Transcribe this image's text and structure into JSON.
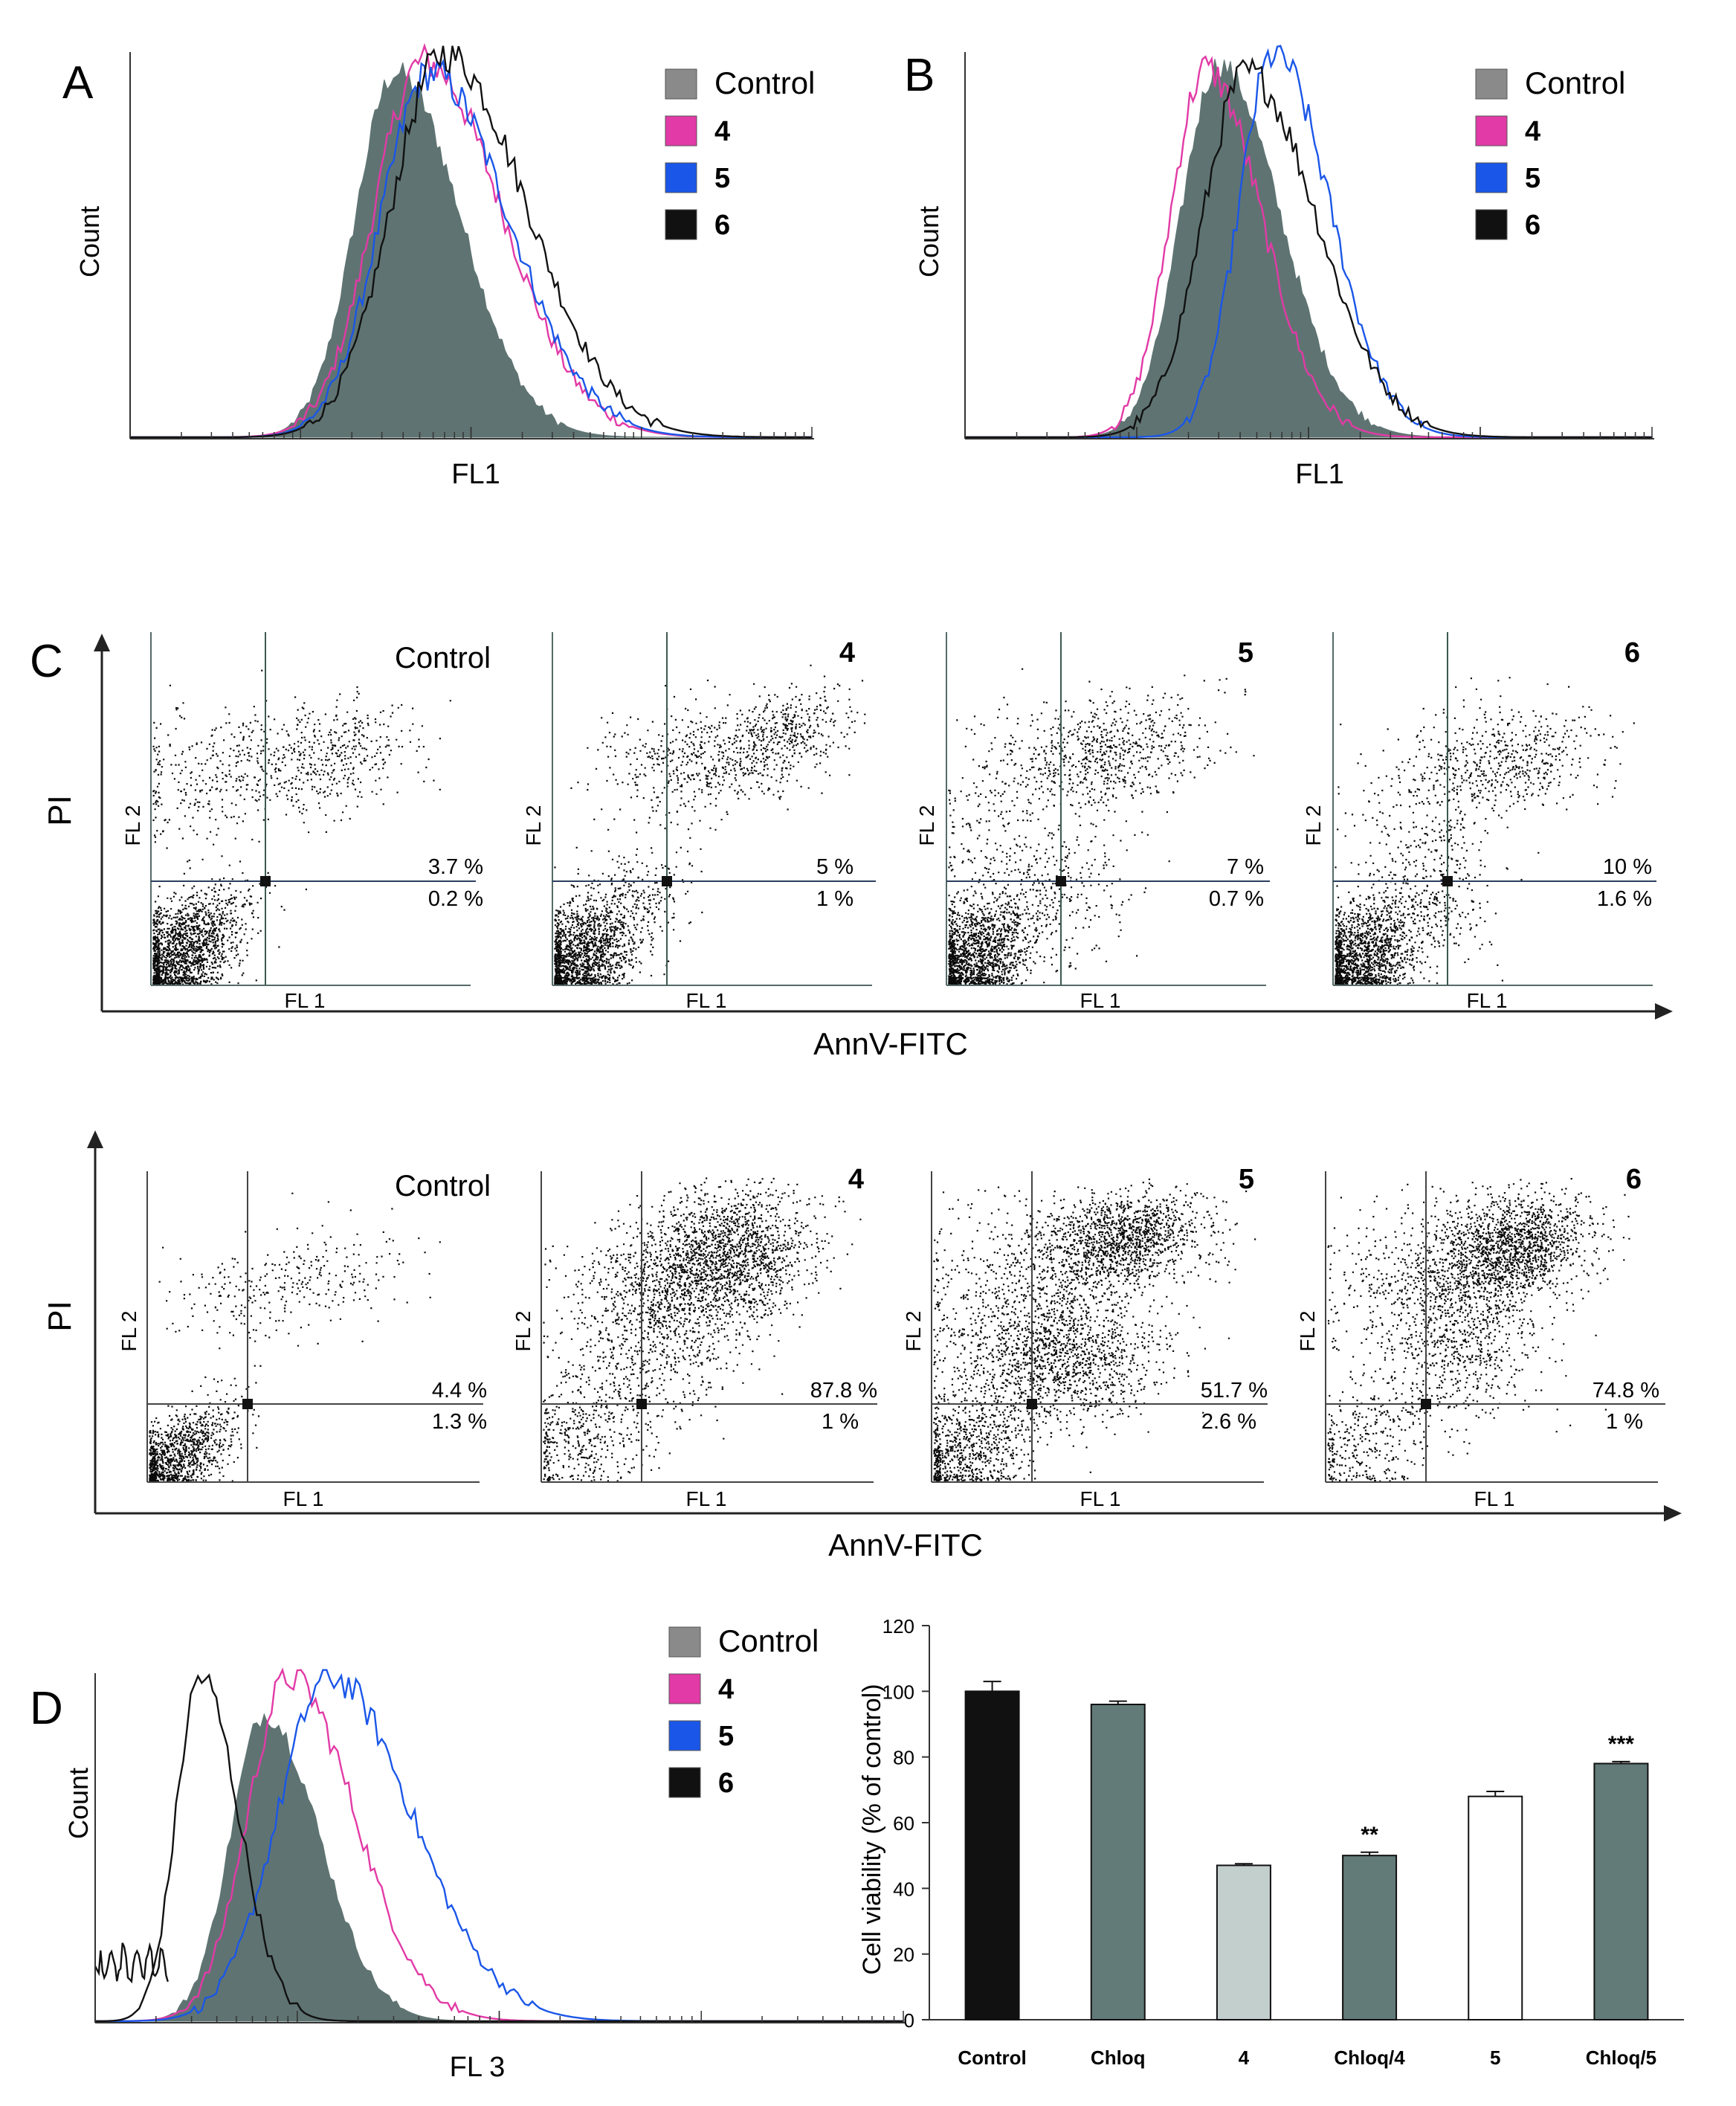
{
  "colors": {
    "control_fill": "#5f7472",
    "control_light": "#8a8a8a",
    "s4": "#e23aa6",
    "s5": "#1a56e8",
    "s6": "#111111",
    "axis": "#333333",
    "quad_line": "#2c3e50",
    "bar_black": "#111111",
    "bar_dark": "#627a78",
    "bar_light": "#c2cfcd",
    "bar_white": "#ffffff"
  },
  "panels": {
    "A": {
      "letter": "A",
      "xlabel": "FL1",
      "ylabel": "Count"
    },
    "B": {
      "letter": "B",
      "xlabel": "FL1",
      "ylabel": "Count"
    },
    "C": {
      "letter": "C",
      "ylabel": "PI",
      "xlabel": "AnnV-FITC",
      "sub_xlabel": "FL 1",
      "sub_ylabel": "FL 2"
    },
    "D": {
      "letter": "D",
      "xlabel": "FL 3",
      "ylabel": "Count"
    }
  },
  "legend": {
    "items": [
      "Control",
      "4",
      "5",
      "6"
    ]
  },
  "scatter_rows": [
    {
      "ylabel": "PI",
      "xlabel": "AnnV-FITC",
      "plots": [
        {
          "title": "Control",
          "upper": "3.7 %",
          "lower": "0.2 %"
        },
        {
          "title": "4",
          "upper": "5 %",
          "lower": "1 %"
        },
        {
          "title": "5",
          "upper": "7 %",
          "lower": "0.7 %"
        },
        {
          "title": "6",
          "upper": "10 %",
          "lower": "1.6 %"
        }
      ]
    },
    {
      "ylabel": "PI",
      "xlabel": "AnnV-FITC",
      "plots": [
        {
          "title": "Control",
          "upper": "4.4 %",
          "lower": "1.3 %"
        },
        {
          "title": "4",
          "upper": "87.8 %",
          "lower": "1 %"
        },
        {
          "title": "5",
          "upper": "51.7 %",
          "lower": "2.6 %"
        },
        {
          "title": "6",
          "upper": "74.8 %",
          "lower": "1 %"
        }
      ]
    }
  ],
  "chart_data": [
    {
      "panel": "A",
      "type": "area",
      "title": "",
      "xlabel": "FL1",
      "ylabel": "Count",
      "x_scale": "log",
      "legend": [
        "Control",
        "4",
        "5",
        "6"
      ],
      "series": [
        {
          "name": "Control",
          "style": "filled",
          "peak": 0.39,
          "height": 0.95
        },
        {
          "name": "4",
          "style": "line",
          "peak": 0.43,
          "height": 0.98
        },
        {
          "name": "5",
          "style": "line",
          "peak": 0.44,
          "height": 0.95
        },
        {
          "name": "6",
          "style": "line",
          "peak": 0.46,
          "height": 1.0
        }
      ]
    },
    {
      "panel": "B",
      "type": "area",
      "title": "",
      "xlabel": "FL1",
      "ylabel": "Count",
      "x_scale": "log",
      "legend": [
        "Control",
        "4",
        "5",
        "6"
      ],
      "series": [
        {
          "name": "Control",
          "style": "filled",
          "peak": 0.37,
          "height": 0.97
        },
        {
          "name": "4",
          "style": "line",
          "peak": 0.35,
          "height": 0.96
        },
        {
          "name": "5",
          "style": "line",
          "peak": 0.45,
          "height": 1.0
        },
        {
          "name": "6",
          "style": "line",
          "peak": 0.41,
          "height": 0.95
        }
      ]
    },
    {
      "panel": "D",
      "type": "area",
      "title": "",
      "xlabel": "FL 3",
      "ylabel": "Count",
      "x_scale": "log",
      "legend": [
        "Control",
        "4",
        "5",
        "6"
      ],
      "series": [
        {
          "name": "Control",
          "style": "filled",
          "peak": 0.21,
          "height": 0.89
        },
        {
          "name": "4",
          "style": "line",
          "peak": 0.24,
          "height": 1.0
        },
        {
          "name": "5",
          "style": "line",
          "peak": 0.29,
          "height": 1.0
        },
        {
          "name": "6",
          "style": "line",
          "peak": 0.13,
          "height": 1.0
        }
      ]
    },
    {
      "panel": "D-bar",
      "type": "bar",
      "title": "",
      "xlabel": "",
      "ylabel": "Cell viability (% of control)",
      "ylim": [
        0,
        120
      ],
      "yticks": [
        0,
        20,
        40,
        60,
        80,
        100,
        120
      ],
      "categories": [
        "Control",
        "Chloq",
        "4",
        "Chloq/4",
        "5",
        "Chloq/5"
      ],
      "values": [
        100,
        96,
        47,
        50,
        68,
        78
      ],
      "errors": [
        3,
        1,
        0.5,
        1,
        1.5,
        0.6
      ],
      "fills": [
        "black",
        "dark",
        "light",
        "dark",
        "white",
        "dark"
      ],
      "significance": [
        "",
        "",
        "",
        "**",
        "",
        "***"
      ]
    }
  ]
}
